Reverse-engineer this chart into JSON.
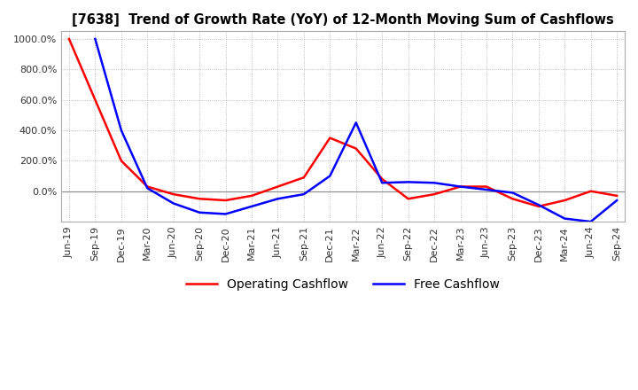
{
  "title": "[7638]  Trend of Growth Rate (YoY) of 12-Month Moving Sum of Cashflows",
  "x_labels": [
    "Jun-19",
    "Sep-19",
    "Dec-19",
    "Mar-20",
    "Jun-20",
    "Sep-20",
    "Dec-20",
    "Mar-21",
    "Jun-21",
    "Sep-21",
    "Dec-21",
    "Mar-22",
    "Jun-22",
    "Sep-22",
    "Dec-22",
    "Mar-23",
    "Jun-23",
    "Sep-23",
    "Dec-23",
    "Mar-24",
    "Jun-24",
    "Sep-24"
  ],
  "operating_cashflow": [
    1000,
    600,
    200,
    30,
    -20,
    -50,
    -60,
    -30,
    30,
    90,
    350,
    280,
    80,
    -50,
    -20,
    30,
    30,
    -50,
    -100,
    -60,
    0,
    -30
  ],
  "free_cashflow": [
    null,
    1000,
    400,
    20,
    -80,
    -140,
    -150,
    -100,
    -50,
    -20,
    100,
    450,
    55,
    60,
    55,
    30,
    10,
    -10,
    -90,
    -180,
    -200,
    -60
  ],
  "op_color": "#ff0000",
  "fc_color": "#0000ff",
  "ylim_min": -200,
  "ylim_max": 1050,
  "ytick_values": [
    0,
    200,
    400,
    600,
    800,
    1000
  ],
  "background_color": "#ffffff",
  "grid_color": "#aaaaaa"
}
